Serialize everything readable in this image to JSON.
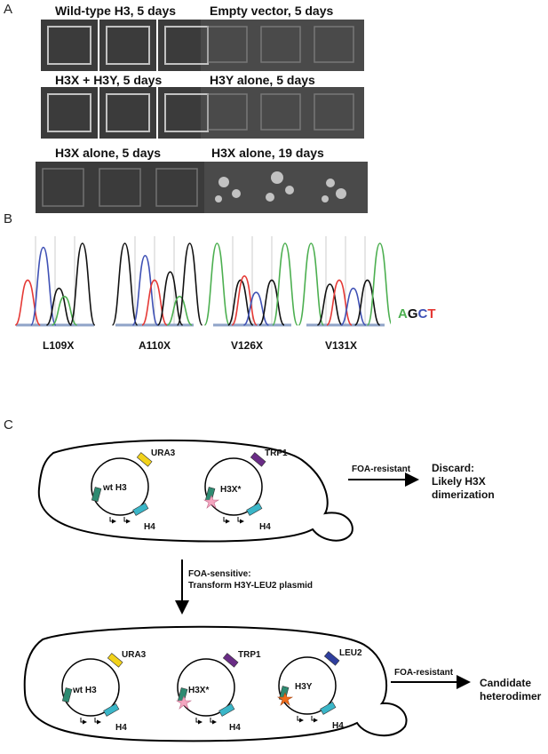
{
  "panels": {
    "a": "A",
    "b": "B",
    "c": "C"
  },
  "panel_a": {
    "rows": [
      {
        "left_title": "Wild-type H3, 5 days",
        "right_title": "Empty vector, 5 days"
      },
      {
        "left_title": "H3X + H3Y, 5 days",
        "right_title": "H3Y alone, 5 days"
      },
      {
        "left_title": "H3X alone, 5 days",
        "right_title": "H3X alone, 19 days"
      }
    ]
  },
  "panel_b": {
    "labels": [
      "L109X",
      "A110X",
      "V126X",
      "V131X"
    ],
    "legend": {
      "a": "A",
      "g": "G",
      "c": "C",
      "t": "T"
    },
    "colors": {
      "a": "#4caf50",
      "g": "#111111",
      "c": "#3f51b5",
      "t": "#e53935"
    }
  },
  "panel_c": {
    "cell1": {
      "plasmid1": {
        "marker": "URA3",
        "insert": "wt H3",
        "h4": "H4"
      },
      "plasmid2": {
        "marker": "TRP1",
        "insert": "H3X*",
        "h4": "H4"
      },
      "arrow": "FOA-resistant",
      "outcome": [
        "Discard:",
        "Likely H3X",
        "dimerization"
      ]
    },
    "down_arrow": [
      "FOA-sensitive:",
      "Transform H3Y-LEU2 plasmid"
    ],
    "cell2": {
      "plasmid1": {
        "marker": "URA3",
        "insert": "wt H3",
        "h4": "H4"
      },
      "plasmid2": {
        "marker": "TRP1",
        "insert": "H3X*",
        "h4": "H4"
      },
      "plasmid3": {
        "marker": "LEU2",
        "insert": "H3Y",
        "h4": "H4"
      },
      "arrow": "FOA-resistant",
      "outcome": [
        "Candidate",
        "heterodimer"
      ]
    },
    "colors": {
      "ura3": "#f2d21b",
      "trp1": "#6a2c86",
      "leu2": "#2f3f9e",
      "h3": "#2e8b72",
      "h4": "#3ab6c8",
      "star_pink": "#f4a6c0",
      "star_orange": "#ef6c1a"
    }
  }
}
